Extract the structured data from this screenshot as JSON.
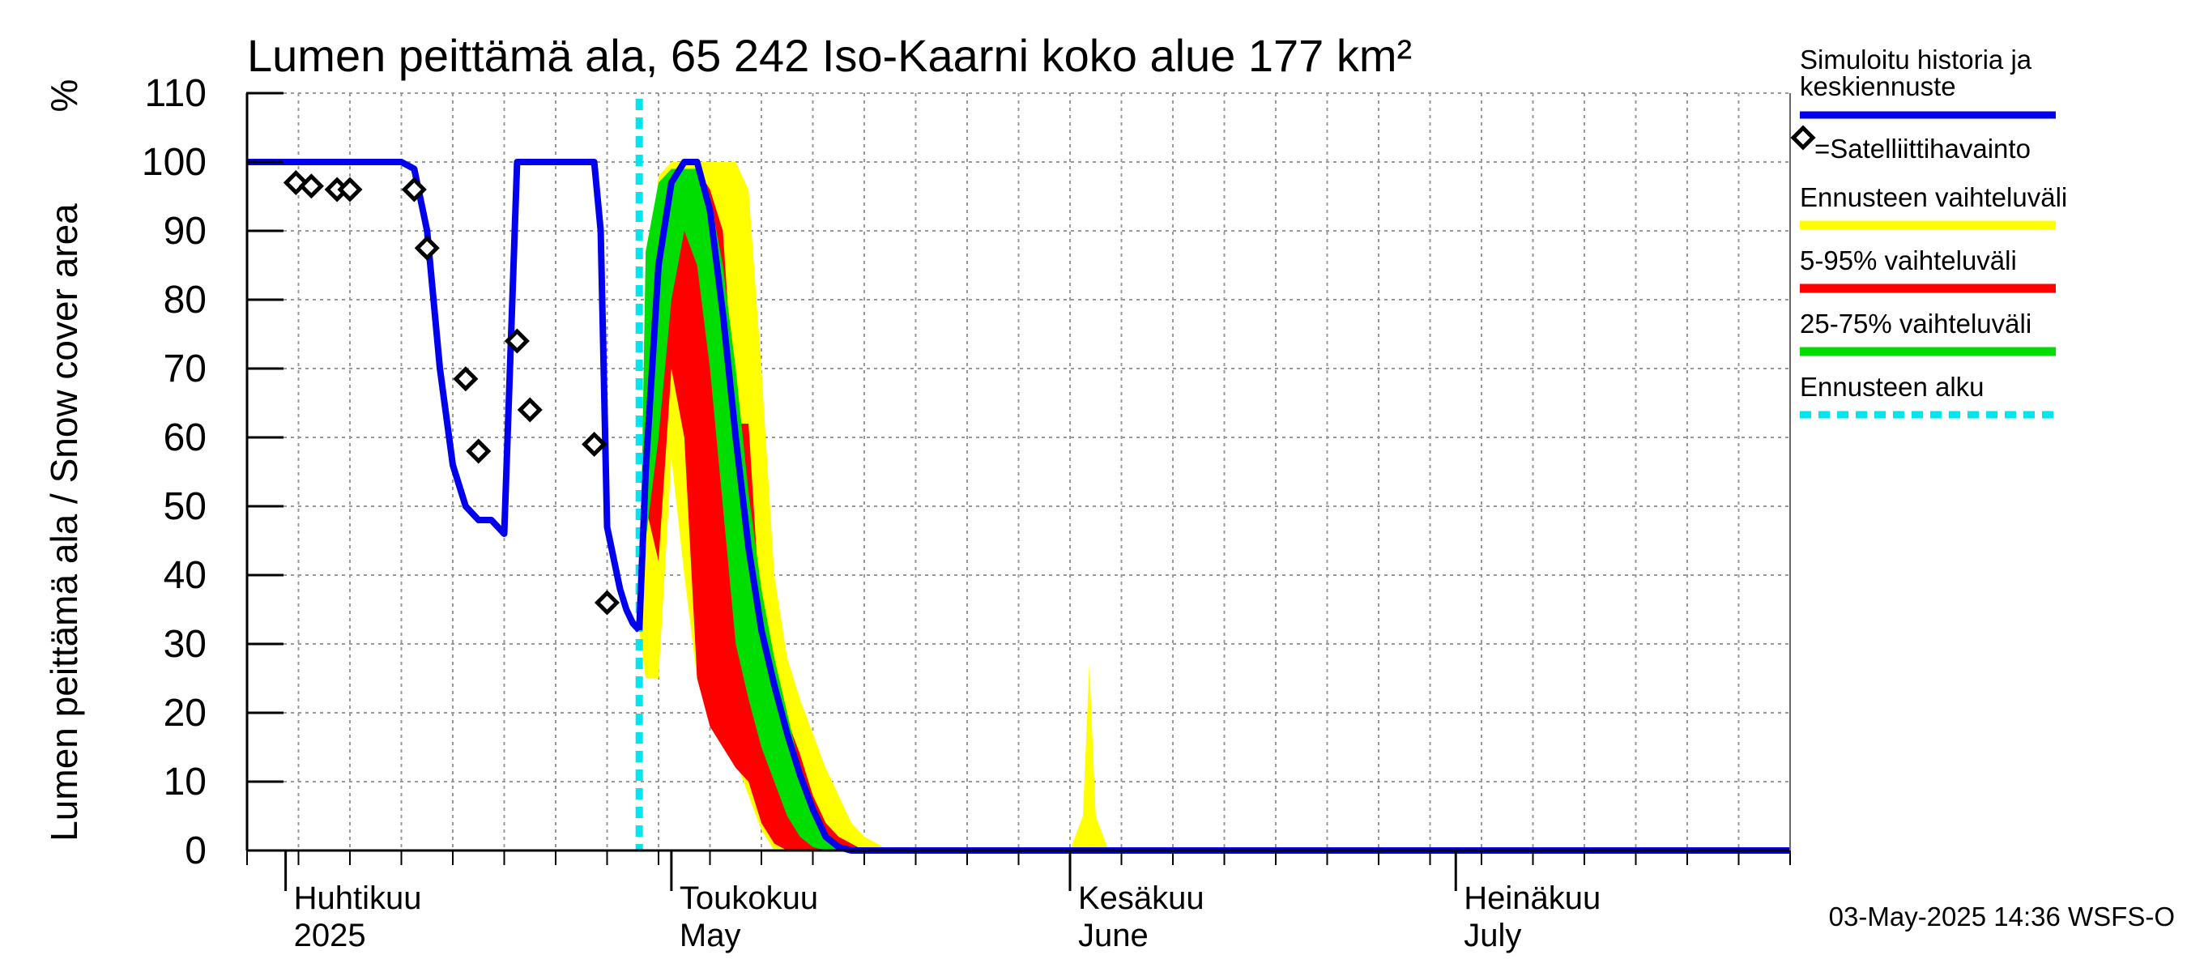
{
  "chart_data": {
    "type": "area",
    "title": "Lumen peittämä ala, 65 242 Iso-Kaarni koko alue 177 km²",
    "ylabel": "Lumen peittämä ala / Snow cover area",
    "yunit": "%",
    "ylim": [
      0,
      110
    ],
    "yticks": [
      0,
      10,
      20,
      30,
      40,
      50,
      60,
      70,
      80,
      90,
      100,
      110
    ],
    "xlim_days": [
      0,
      120
    ],
    "x_unit": "days since 2025-03-29",
    "grid": true,
    "months": [
      {
        "label": "Huhtikuu",
        "sublabel": "2025",
        "day": 3
      },
      {
        "label": "Toukokuu",
        "sublabel": "May",
        "day": 33
      },
      {
        "label": "Kesäkuu",
        "sublabel": "June",
        "day": 64
      },
      {
        "label": "Heinäkuu",
        "sublabel": "July",
        "day": 94
      }
    ],
    "forecast_start_day": 30.5,
    "history": {
      "name": "Simuloitu historia ja keskiennuste",
      "color": "#0000ee",
      "x": [
        0,
        2,
        5,
        10,
        12,
        13,
        14,
        15,
        16,
        17,
        18,
        19,
        20,
        21,
        22,
        23,
        24,
        25,
        26,
        26.5,
        27,
        27.5,
        28,
        29,
        29.5,
        30,
        30.5
      ],
      "y": [
        100,
        100,
        100,
        100,
        100,
        99,
        90,
        70,
        56,
        50,
        48,
        48,
        46,
        100,
        100,
        100,
        100,
        100,
        100,
        100,
        100,
        90,
        47,
        38,
        35,
        33,
        32
      ]
    },
    "median": {
      "x": [
        30.5,
        31,
        32,
        33,
        34,
        35,
        36,
        37,
        38,
        39,
        40,
        41,
        42,
        43,
        44,
        45,
        46,
        47,
        48,
        120
      ],
      "y": [
        32,
        55,
        85,
        97,
        100,
        100,
        93,
        78,
        60,
        44,
        32,
        24,
        17,
        11,
        6,
        2,
        0.5,
        0,
        0,
        0
      ]
    },
    "bands": [
      {
        "name": "Ennusteen vaihteluväli",
        "color": "#ffff00",
        "x": [
          30.5,
          31,
          32,
          33,
          34,
          35,
          36,
          37,
          38,
          39,
          40,
          41,
          42,
          43,
          44,
          45,
          46,
          47,
          48,
          49,
          50,
          51,
          64,
          65,
          65.5,
          66,
          67,
          120
        ],
        "upper": [
          32,
          80,
          98,
          100,
          100,
          100,
          100,
          100,
          100,
          96,
          70,
          40,
          28,
          22,
          17,
          12,
          8,
          4,
          2,
          1,
          0,
          0,
          0,
          5,
          27,
          5,
          0,
          0
        ],
        "lower": [
          32,
          25,
          25,
          57,
          40,
          25,
          22,
          18,
          13,
          8,
          3,
          0,
          0,
          0,
          0,
          0,
          0,
          0,
          0,
          0,
          0,
          0,
          0,
          0,
          0,
          0,
          0,
          0
        ]
      },
      {
        "name": "5-95% vaihteluväli",
        "color": "#ff0000",
        "x": [
          30.5,
          31,
          32,
          33,
          34,
          35,
          36,
          37,
          38,
          39,
          40,
          41,
          42,
          43,
          44,
          45,
          46,
          47,
          48,
          49,
          120
        ],
        "upper": [
          32,
          62,
          92,
          99,
          99,
          99,
          96,
          90,
          62,
          62,
          32,
          25,
          19,
          14,
          8,
          4,
          2,
          1,
          0,
          0,
          0
        ],
        "lower": [
          32,
          50,
          42,
          70,
          60,
          25,
          18,
          15,
          12,
          10,
          4,
          1,
          0,
          0,
          0,
          0,
          0,
          0,
          0,
          0,
          0
        ]
      },
      {
        "name": "25-75% vaihteluväli",
        "color": "#00dd00",
        "x": [
          30.5,
          31,
          32,
          33,
          34,
          35,
          36,
          37,
          38,
          39,
          40,
          41,
          42,
          43,
          44,
          45,
          46,
          47,
          120
        ],
        "upper": [
          32,
          87,
          97,
          99,
          99,
          99,
          95,
          85,
          70,
          52,
          38,
          28,
          20,
          12,
          6,
          2,
          0.5,
          0,
          0
        ],
        "lower": [
          32,
          45,
          60,
          80,
          90,
          85,
          70,
          50,
          30,
          22,
          15,
          10,
          5,
          2,
          0.5,
          0,
          0,
          0,
          0
        ]
      }
    ],
    "observations": {
      "name": "=Satelliittihavainto",
      "x": [
        3.8,
        5,
        7,
        8,
        13,
        14,
        17,
        18,
        21,
        22,
        27,
        28
      ],
      "y": [
        97,
        96.5,
        96,
        96,
        96,
        87.5,
        68.5,
        58,
        74,
        64,
        59,
        36
      ]
    },
    "legend": [
      {
        "label": "Simuloitu historia ja keskiennuste",
        "color": "#0000ee",
        "style": "line"
      },
      {
        "label": "=Satelliittihavainto",
        "color": "#000000",
        "style": "marker"
      },
      {
        "label": "Ennusteen vaihteluväli",
        "color": "#ffff00",
        "style": "line"
      },
      {
        "label": "5-95% vaihteluväli",
        "color": "#ff0000",
        "style": "line"
      },
      {
        "label": "25-75% vaihteluväli",
        "color": "#00dd00",
        "style": "line"
      },
      {
        "label": "Ennusteen alku",
        "color": "#00e5ee",
        "style": "dashed"
      }
    ],
    "footer": "03-May-2025 14:36 WSFS-O"
  }
}
